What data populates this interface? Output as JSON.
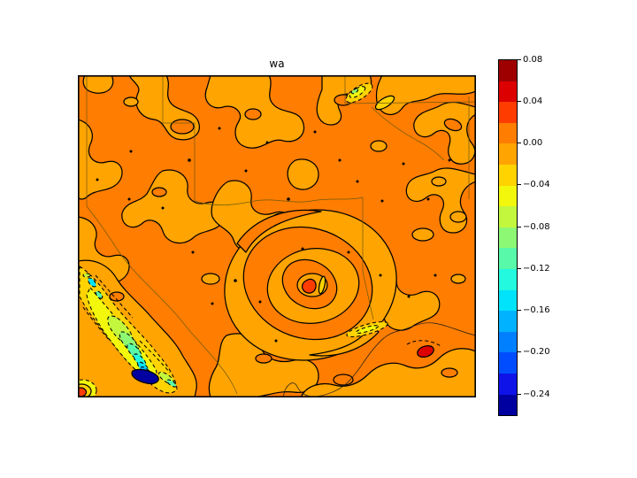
{
  "title": "wa",
  "colorbar": {
    "tick_labels": [
      "0.08",
      "0.04",
      "0.00",
      "−0.04",
      "−0.08",
      "−0.12",
      "−0.16",
      "−0.20",
      "−0.24"
    ],
    "bands_top_to_bottom": [
      {
        "from": 0.06,
        "to": 0.08,
        "color": "#9e0000"
      },
      {
        "from": 0.04,
        "to": 0.06,
        "color": "#dd0000"
      },
      {
        "from": 0.02,
        "to": 0.04,
        "color": "#ff3c00"
      },
      {
        "from": 0.0,
        "to": 0.02,
        "color": "#ff7d00"
      },
      {
        "from": -0.02,
        "to": 0.0,
        "color": "#ffa400"
      },
      {
        "from": -0.04,
        "to": -0.02,
        "color": "#ffd300"
      },
      {
        "from": -0.06,
        "to": -0.04,
        "color": "#f2f70b"
      },
      {
        "from": -0.08,
        "to": -0.06,
        "color": "#c3f73e"
      },
      {
        "from": -0.1,
        "to": -0.08,
        "color": "#8df873"
      },
      {
        "from": -0.12,
        "to": -0.1,
        "color": "#58f9a8"
      },
      {
        "from": -0.14,
        "to": -0.12,
        "color": "#22f9de"
      },
      {
        "from": -0.16,
        "to": -0.14,
        "color": "#00e3fa"
      },
      {
        "from": -0.18,
        "to": -0.16,
        "color": "#00b2ff"
      },
      {
        "from": -0.2,
        "to": -0.18,
        "color": "#0080ff"
      },
      {
        "from": -0.22,
        "to": -0.2,
        "color": "#004dff"
      },
      {
        "from": -0.24,
        "to": -0.22,
        "color": "#0f13e8"
      },
      {
        "from": -0.26,
        "to": -0.24,
        "color": "#0000a0"
      }
    ]
  },
  "map_line_colors": {
    "state_boundaries": "#6e5a10",
    "coastline": "#1a1a1a",
    "contour_lines": "#000000"
  },
  "chart_data": {
    "type": "heatmap",
    "subtype": "filled_contour_map",
    "title": "wa",
    "colormap": "jet",
    "contour_interval": 0.02,
    "levels": [
      -0.26,
      -0.24,
      -0.22,
      -0.2,
      -0.18,
      -0.16,
      -0.14,
      -0.12,
      -0.1,
      -0.08,
      -0.06,
      -0.04,
      -0.02,
      0.0,
      0.02,
      0.04,
      0.06,
      0.08
    ],
    "colorbar_ticks": [
      0.08,
      0.04,
      0.0,
      -0.04,
      -0.08,
      -0.12,
      -0.16,
      -0.2,
      -0.24
    ],
    "value_range": [
      -0.26,
      0.08
    ],
    "legend_position": "right-vertical-colorbar",
    "grid": false,
    "axes_ticks_visible": false,
    "overlays": [
      "US state boundaries",
      "coastline of Gulf of Mexico",
      "US–Mexico border / Rio Grande"
    ],
    "field_summary": [
      {
        "region": "most of domain (south-central US, Gulf of Mexico, NE Mexico)",
        "value_band": "-0.02 to +0.02",
        "appearance": "interlocking orange and light-orange amoeba-shaped contour bands with solid black contour lines"
      },
      {
        "region": "cyclonic spiral centered south-center of domain (hurricane-like vortex)",
        "value_band": "alternating 0.00–0.02 and -0.02–0.00 spiral arms",
        "peak": "0.02 to 0.04 red spot at the eye"
      },
      {
        "region": "southwest NW–SE mountain-wave train over NE Mexico",
        "value_band": "-0.04 down to below -0.24",
        "appearance": "yellow/green/cyan/blue patches with dashed negative contours; navy minimum < -0.24"
      },
      {
        "region": "small negative patches top-right",
        "value_band": "-0.08 to -0.02",
        "appearance": "yellow ellipses with dashed contours"
      },
      {
        "region": "bottom-right wave couplet east of vortex",
        "value_band": "gold streak -0.04 to -0.02 beside red maximum 0.04 to 0.06"
      },
      {
        "region": "bottom-left corner spot",
        "value_band": "positive maximum 0.02 to 0.04 ringed by -0.06 to -0.02"
      }
    ]
  }
}
